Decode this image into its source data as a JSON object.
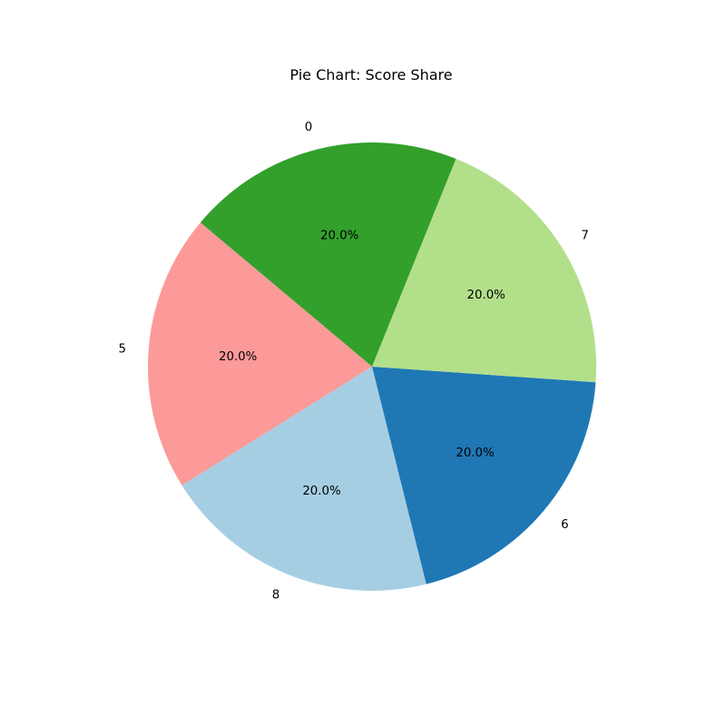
{
  "chart_data": {
    "type": "pie",
    "title": "Pie Chart: Score Share",
    "start_angle_deg": 68,
    "direction": "counterclockwise",
    "slices": [
      {
        "label": "0",
        "value": 20.0,
        "pct_label": "20.0%",
        "color": "#33a02c"
      },
      {
        "label": "5",
        "value": 20.0,
        "pct_label": "20.0%",
        "color": "#fb9a99"
      },
      {
        "label": "8",
        "value": 20.0,
        "pct_label": "20.0%",
        "color": "#a6cee3"
      },
      {
        "label": "6",
        "value": 20.0,
        "pct_label": "20.0%",
        "color": "#1f78b4"
      },
      {
        "label": "7",
        "value": 20.0,
        "pct_label": "20.0%",
        "color": "#b2df8a"
      }
    ]
  }
}
